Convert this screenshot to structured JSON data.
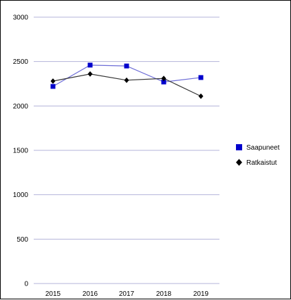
{
  "chart_data": {
    "type": "line",
    "title": "",
    "xlabel": "",
    "ylabel": "",
    "categories": [
      "2015",
      "2016",
      "2017",
      "2018",
      "2019"
    ],
    "series": [
      {
        "name": "Saapuneet",
        "values": [
          2220,
          2460,
          2450,
          2270,
          2320
        ],
        "color": "#0000cc",
        "line_color": "#6b6bd6",
        "marker": "square"
      },
      {
        "name": "Ratkaistut",
        "values": [
          2280,
          2360,
          2290,
          2310,
          2110
        ],
        "color": "#000000",
        "line_color": "#333333",
        "marker": "diamond"
      }
    ],
    "ylim": [
      0,
      3000
    ],
    "yticks": [
      "0",
      "500",
      "1000",
      "1500",
      "2000",
      "2500",
      "3000"
    ],
    "grid": true,
    "grid_color": "#b3b3d9",
    "legend_position": "right"
  }
}
